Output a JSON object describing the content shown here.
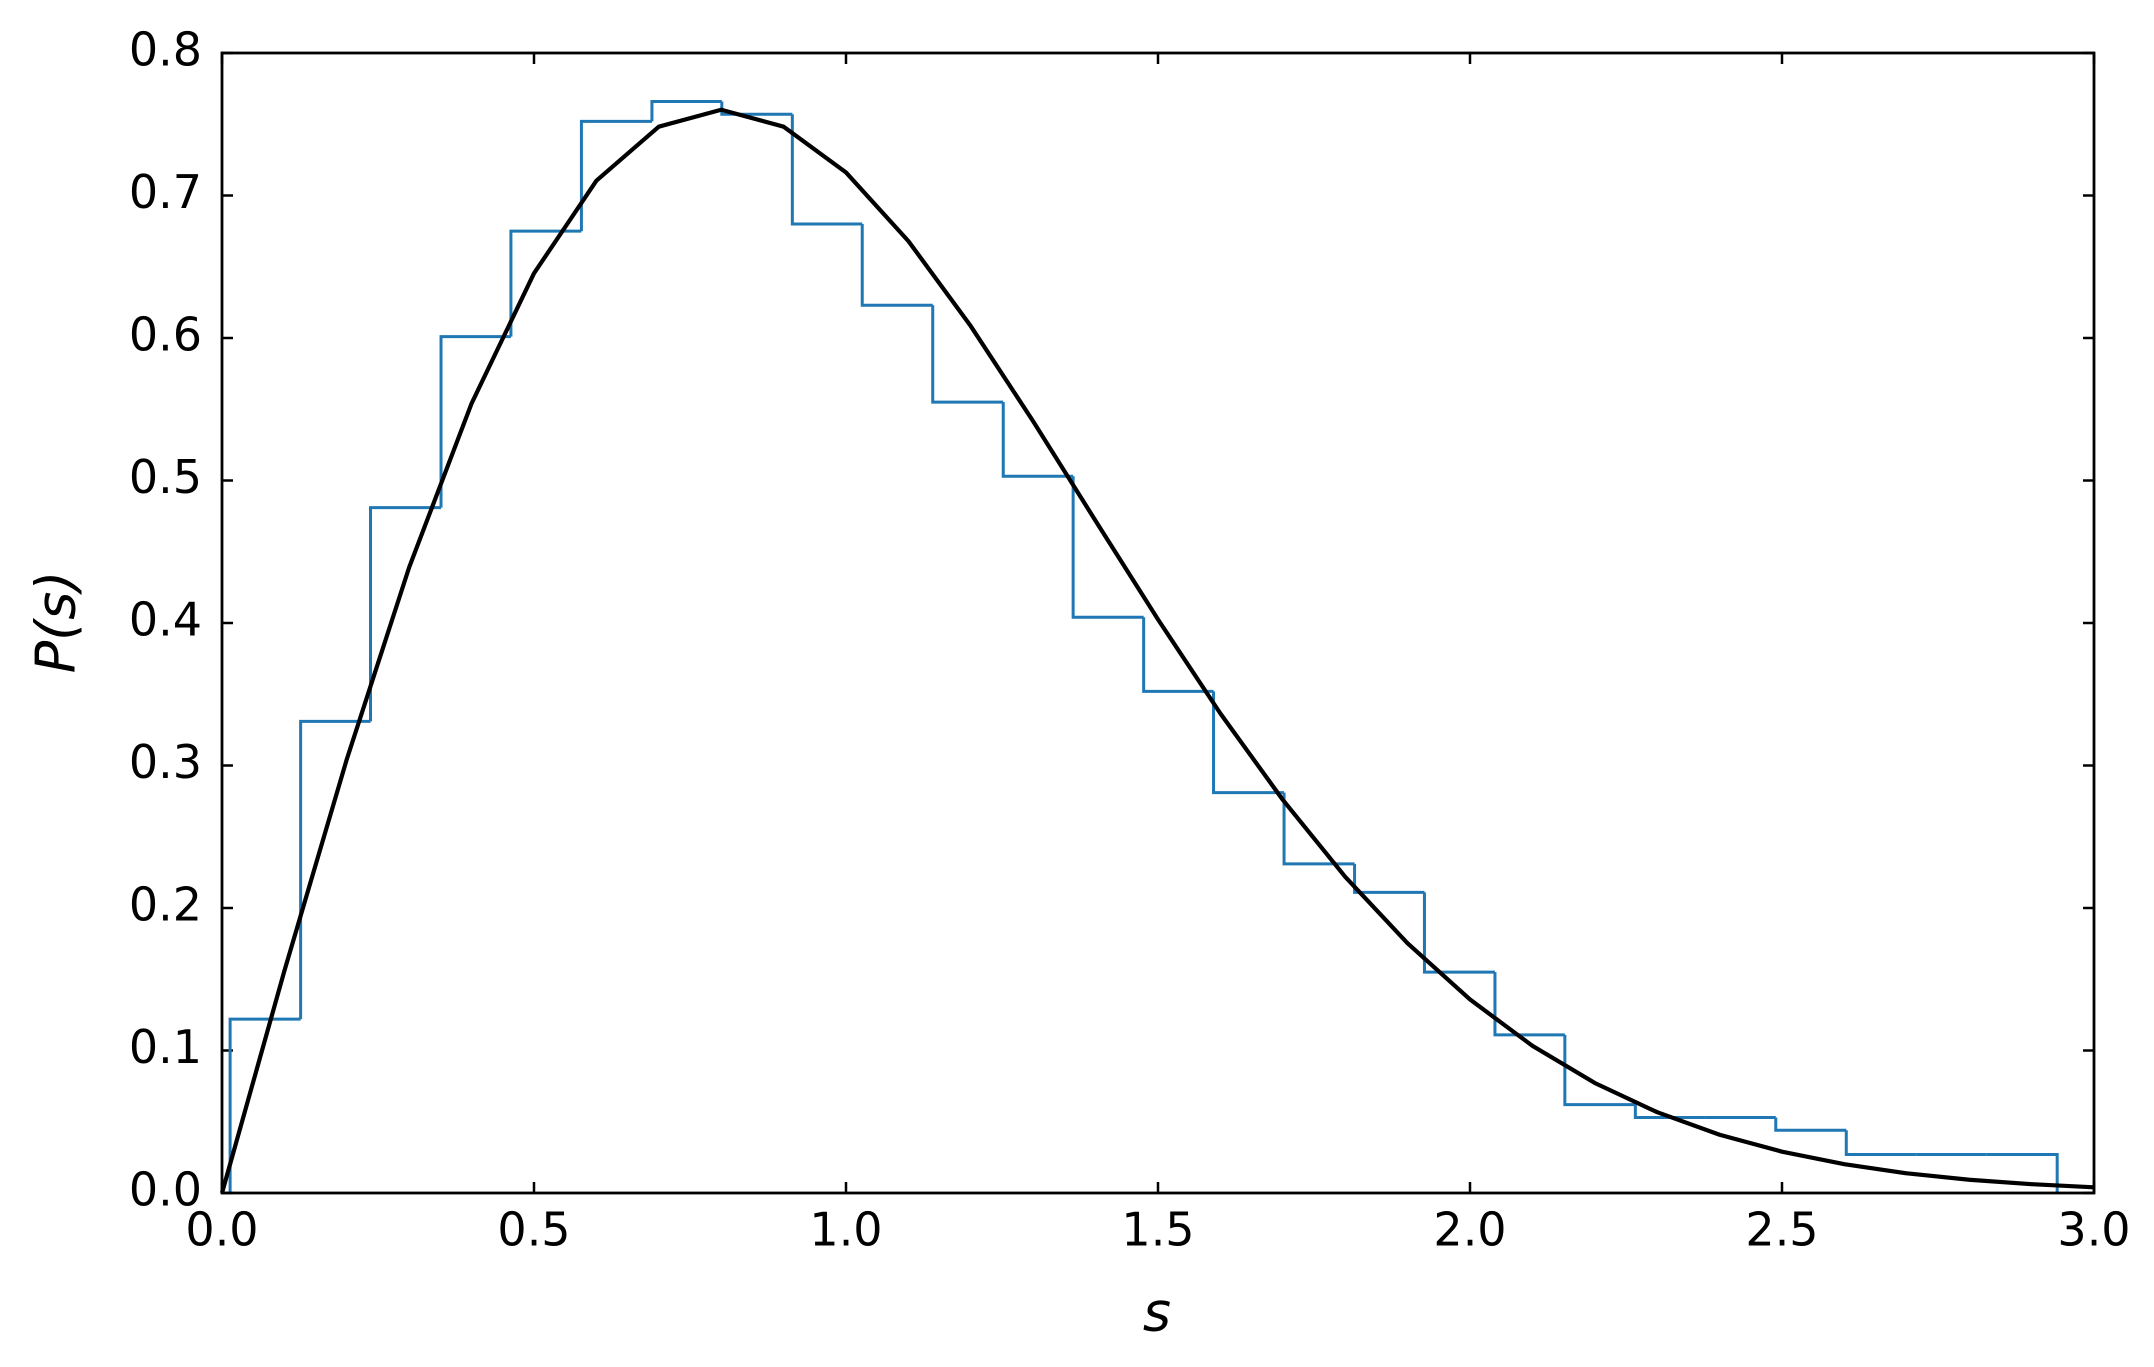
{
  "chart_data": {
    "type": "histogram",
    "xlabel": "s",
    "ylabel": "P(s)",
    "bins": [
      0.013,
      0.126,
      0.238,
      0.351,
      0.463,
      0.576,
      0.689,
      0.801,
      0.914,
      1.026,
      1.139,
      1.252,
      1.364,
      1.477,
      1.589,
      1.702,
      1.815,
      1.927,
      2.04,
      2.152,
      2.265,
      2.378,
      2.49,
      2.603,
      2.715,
      2.828,
      2.941
    ],
    "values": [
      0.122,
      0.331,
      0.481,
      0.601,
      0.675,
      0.752,
      0.766,
      0.757,
      0.68,
      0.623,
      0.555,
      0.503,
      0.404,
      0.352,
      0.281,
      0.231,
      0.211,
      0.155,
      0.111,
      0.062,
      0.053,
      0.053,
      0.044,
      0.027,
      0.027,
      0.027
    ],
    "color": "#1f77b4",
    "curve": {
      "type": "line",
      "color": "#000000",
      "x": [
        0,
        0.1,
        0.2,
        0.3,
        0.4,
        0.5,
        0.6,
        0.7,
        0.8,
        0.9,
        1.0,
        1.1,
        1.2,
        1.3,
        1.4,
        1.5,
        1.6,
        1.7,
        1.8,
        1.9,
        2.0,
        2.1,
        2.2,
        2.3,
        2.4,
        2.5,
        2.6,
        2.7,
        2.8,
        2.9,
        3.0
      ],
      "values": [
        0,
        0.1559,
        0.3044,
        0.4391,
        0.5541,
        0.6454,
        0.7104,
        0.7483,
        0.7602,
        0.7483,
        0.7162,
        0.668,
        0.6083,
        0.5415,
        0.4717,
        0.4025,
        0.3365,
        0.2759,
        0.2219,
        0.1752,
        0.1358,
        0.1033,
        0.0772,
        0.0567,
        0.0409,
        0.029,
        0.0202,
        0.0138,
        0.0093,
        0.0062,
        0.004
      ]
    },
    "xlim": [
      0,
      3
    ],
    "ylim": [
      0,
      0.8
    ],
    "xticks": [
      {
        "value": 0,
        "label": "0.0"
      },
      0.5,
      {
        "value": 1,
        "label": "1.0"
      },
      1.5,
      {
        "value": 2,
        "label": "2.0"
      },
      2.5,
      {
        "value": 3,
        "label": "3.0"
      }
    ],
    "yticks": [
      {
        "value": 0,
        "label": "0.0"
      },
      0.1,
      0.2,
      0.3,
      0.4,
      0.5,
      0.6,
      0.7,
      0.8
    ]
  }
}
